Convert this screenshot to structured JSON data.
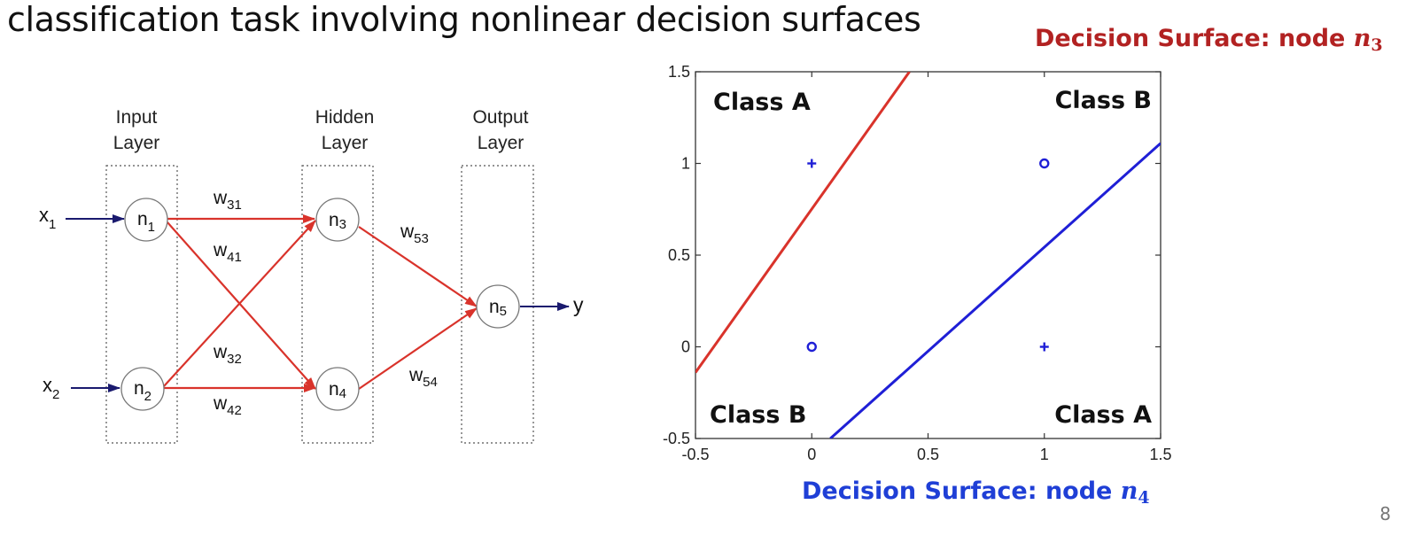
{
  "slide": {
    "title": "classification task involving nonlinear decision surfaces",
    "page_number": "8"
  },
  "network": {
    "layers": [
      {
        "line1": "Input",
        "line2": "Layer"
      },
      {
        "line1": "Hidden",
        "line2": "Layer"
      },
      {
        "line1": "Output",
        "line2": "Layer"
      }
    ],
    "inputs": {
      "x1": {
        "base": "x",
        "sub": "1"
      },
      "x2": {
        "base": "x",
        "sub": "2"
      }
    },
    "output": "y",
    "nodes": {
      "n1": {
        "base": "n",
        "sub": "1"
      },
      "n2": {
        "base": "n",
        "sub": "2"
      },
      "n3": {
        "base": "n",
        "sub": "3"
      },
      "n4": {
        "base": "n",
        "sub": "4"
      },
      "n5": {
        "base": "n",
        "sub": "5"
      }
    },
    "weights": {
      "w31": {
        "base": "w",
        "sub": "31"
      },
      "w41": {
        "base": "w",
        "sub": "41"
      },
      "w32": {
        "base": "w",
        "sub": "32"
      },
      "w42": {
        "base": "w",
        "sub": "42"
      },
      "w53": {
        "base": "w",
        "sub": "53"
      },
      "w54": {
        "base": "w",
        "sub": "54"
      }
    },
    "colors": {
      "input_arrows": "#1a1a6e",
      "weight_arrows": "#d9332b",
      "output_arrow": "#1a1a6e"
    }
  },
  "plot": {
    "caption_top": {
      "text": "Decision Surface: node ",
      "var": "n",
      "sub": "3",
      "color": "#b22222"
    },
    "caption_bottom": {
      "text": "Decision Surface: node ",
      "var": "n",
      "sub": "4",
      "color": "#1f3fd6"
    },
    "region_labels": {
      "top_left": "Class A",
      "top_right": "Class B",
      "bottom_left": "Class B",
      "bottom_right": "Class A"
    },
    "chart_data": {
      "type": "scatter",
      "xlim": [
        -0.5,
        1.5
      ],
      "ylim": [
        -0.5,
        1.5
      ],
      "x_ticks": [
        "-0.5",
        "0",
        "0.5",
        "1",
        "1.5"
      ],
      "y_ticks": [
        "-0.5",
        "0",
        "0.5",
        "1",
        "1.5"
      ],
      "grid": false,
      "points": [
        {
          "x": 0,
          "y": 1,
          "marker": "plus"
        },
        {
          "x": 1,
          "y": 1,
          "marker": "circle"
        },
        {
          "x": 0,
          "y": 0,
          "marker": "circle"
        },
        {
          "x": 1,
          "y": 0,
          "marker": "plus"
        }
      ],
      "lines": [
        {
          "name": "n3",
          "color": "#d9332b",
          "from": [
            -0.5,
            -0.14
          ],
          "to": [
            0.42,
            1.5
          ]
        },
        {
          "name": "n4",
          "color": "#1f1fd6",
          "from": [
            0.08,
            -0.5
          ],
          "to": [
            1.5,
            1.11
          ]
        }
      ],
      "marker_color": "#1f1fd6"
    }
  }
}
